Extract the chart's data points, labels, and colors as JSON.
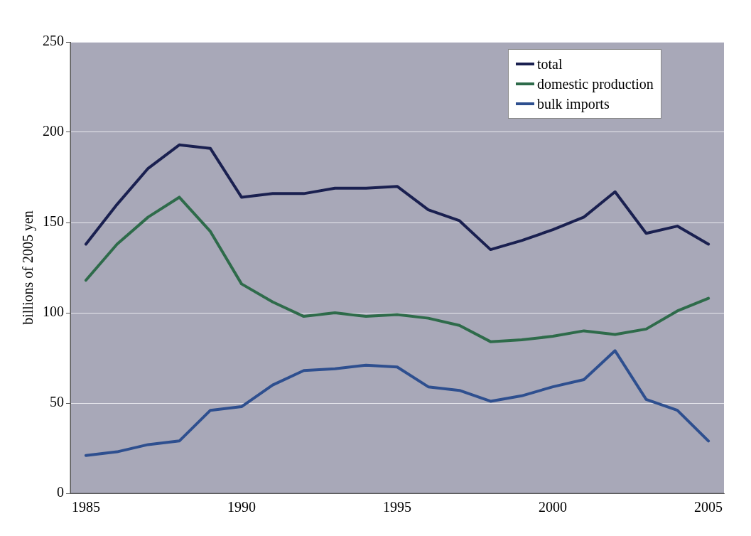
{
  "chart_data": {
    "type": "line",
    "ylabel": "billions of 2005 yen",
    "categories": [
      "1985",
      null,
      null,
      null,
      null,
      "1990",
      null,
      null,
      null,
      null,
      "1995",
      null,
      null,
      null,
      null,
      "2000",
      null,
      null,
      null,
      null,
      "2005"
    ],
    "series": [
      {
        "name": "total",
        "color": "#1a2050",
        "values": [
          138,
          160,
          180,
          193,
          191,
          164,
          166,
          166,
          169,
          169,
          170,
          157,
          151,
          135,
          140,
          146,
          153,
          167,
          144,
          148,
          138
        ]
      },
      {
        "name": "domestic production",
        "color": "#2e6b4a",
        "values": [
          118,
          138,
          153,
          164,
          145,
          116,
          106,
          98,
          100,
          98,
          99,
          97,
          93,
          84,
          85,
          87,
          90,
          88,
          91,
          101,
          108
        ]
      },
      {
        "name": "bulk imports",
        "color": "#2e4f8f",
        "values": [
          21,
          23,
          27,
          29,
          46,
          48,
          60,
          68,
          69,
          71,
          70,
          59,
          57,
          51,
          54,
          59,
          63,
          79,
          52,
          46,
          29
        ]
      }
    ],
    "ylim": [
      0,
      250
    ],
    "yticks": [
      0,
      50,
      100,
      150,
      200,
      250
    ],
    "grid": "y",
    "legend": "top right",
    "marker": "none",
    "line_style": "solid"
  }
}
